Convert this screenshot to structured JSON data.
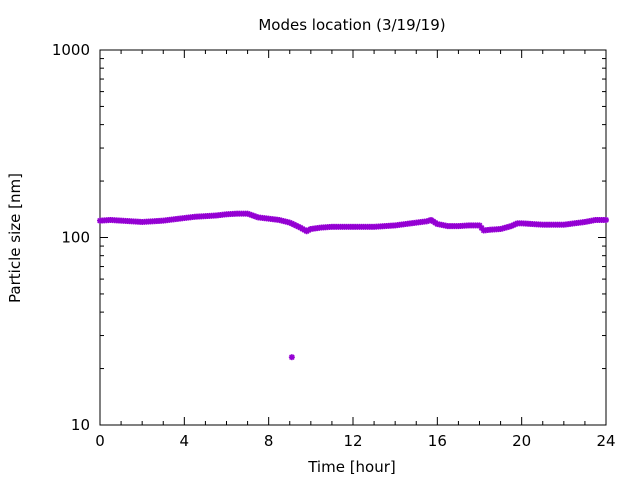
{
  "chart_data": {
    "type": "scatter",
    "title": "Modes location (3/19/19)",
    "xlabel": "Time [hour]",
    "ylabel": "Particle size [nm]",
    "xlim": [
      0,
      24
    ],
    "ylim": [
      10,
      1000
    ],
    "y_scale": "log",
    "x_ticks": [
      0,
      4,
      8,
      12,
      16,
      20,
      24
    ],
    "x_tick_labels": [
      "0",
      "4",
      "8",
      "12",
      "16",
      "20",
      "24"
    ],
    "y_ticks": [
      10,
      100,
      1000
    ],
    "y_tick_labels": [
      "10",
      "100",
      "1000"
    ],
    "grid": false,
    "legend": "none",
    "marker_color": "#9400d3",
    "series": [
      {
        "x": [
          0,
          0.5,
          1,
          1.5,
          2,
          2.5,
          3,
          3.5,
          4,
          4.5,
          5,
          5.5,
          6,
          6.5,
          7,
          7.5,
          8,
          8.5,
          9,
          9.5,
          9.8,
          10,
          10.5,
          11,
          11.5,
          12,
          12.5,
          13,
          13.5,
          14,
          14.5,
          15,
          15.5,
          15.7,
          16,
          16.5,
          17,
          17.5,
          18,
          18.2,
          18.5,
          19,
          19.5,
          19.8,
          20,
          20.5,
          21,
          21.5,
          22,
          22.5,
          23,
          23.5,
          24
        ],
        "y": [
          123,
          124,
          123,
          122,
          121,
          122,
          123,
          125,
          127,
          129,
          130,
          131,
          133,
          134,
          134,
          128,
          126,
          124,
          120,
          113,
          108,
          111,
          113,
          114,
          114,
          114,
          114,
          114,
          115,
          116,
          118,
          120,
          122,
          124,
          118,
          115,
          115,
          116,
          116,
          109,
          110,
          111,
          115,
          119,
          119,
          118,
          117,
          117,
          117,
          119,
          121,
          124,
          124
        ]
      },
      {
        "x": [
          9.1
        ],
        "y": [
          23
        ]
      }
    ]
  }
}
